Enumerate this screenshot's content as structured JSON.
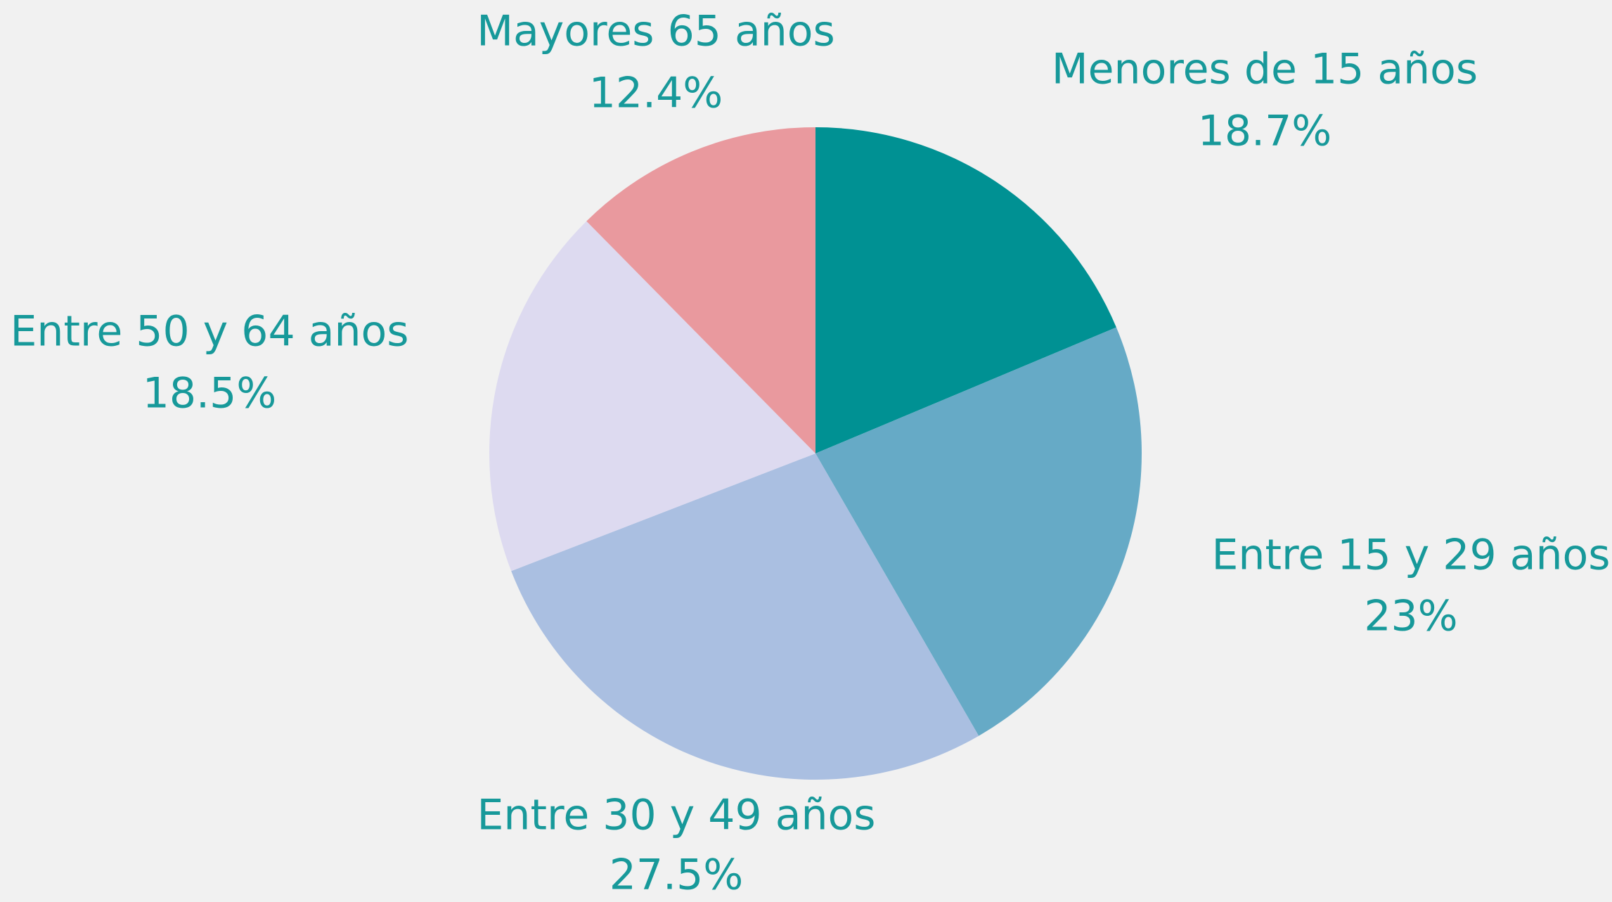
{
  "chart_data": {
    "type": "pie",
    "categories": [
      "Menores de 15 años",
      "Entre 15 y 29 años",
      "Entre 30 y 49 años",
      "Entre 50 y 64 años",
      "Mayores 65 años"
    ],
    "values": [
      18.7,
      23,
      27.5,
      18.5,
      12.4
    ],
    "value_labels": [
      "18.7%",
      "23%",
      "27.5%",
      "18.5%",
      "12.4%"
    ],
    "colors": [
      "#009193",
      "#66aac6",
      "#aabfe1",
      "#dddaf0",
      "#e9999e"
    ]
  }
}
